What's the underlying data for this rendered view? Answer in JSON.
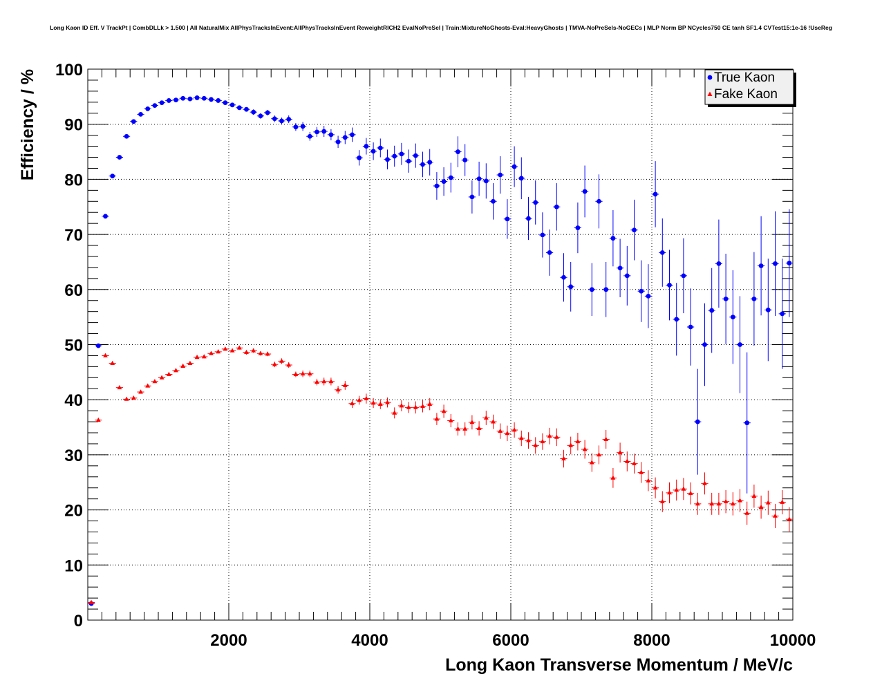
{
  "chart_data": {
    "type": "scatter",
    "title": "Long Kaon ID Eff. V TrackPt | CombDLLk > 1.500 | All NaturalMix AllPhysTracksInEvent:AllPhysTracksInEvent ReweightRICH2 EvalNoPreSel | Train:MixtureNoGhosts-Eval:HeavyGhosts | TMVA-NoPreSels-NoGECs | MLP Norm BP NCycles750 CE tanh SF1.4 CVTest15:1e-16 !UseReg",
    "xlabel": "Long Kaon Transverse Momentum / MeV/c",
    "ylabel": "Efficiency / %",
    "xlim": [
      0,
      10000
    ],
    "ylim": [
      0,
      100
    ],
    "x_ticks": [
      2000,
      4000,
      6000,
      8000,
      10000
    ],
    "x_tick_labels": [
      "2000",
      "4000",
      "6000",
      "8000",
      "10000"
    ],
    "y_ticks": [
      0,
      10,
      20,
      30,
      40,
      50,
      60,
      70,
      80,
      90,
      100
    ],
    "y_tick_labels": [
      "0",
      "10",
      "20",
      "30",
      "40",
      "50",
      "60",
      "70",
      "80",
      "90",
      "100"
    ],
    "grid": true,
    "legend_position": "top-right",
    "series": [
      {
        "name": "True Kaon",
        "marker": "circle",
        "color": "#0000ff",
        "points": [
          [
            50,
            3.0,
            0.3
          ],
          [
            150,
            49.8,
            0.3
          ],
          [
            250,
            73.3,
            0.3
          ],
          [
            350,
            80.6,
            0.3
          ],
          [
            450,
            84.0,
            0.3
          ],
          [
            550,
            87.8,
            0.3
          ],
          [
            650,
            90.5,
            0.3
          ],
          [
            750,
            91.8,
            0.3
          ],
          [
            850,
            92.8,
            0.3
          ],
          [
            950,
            93.4,
            0.3
          ],
          [
            1050,
            93.9,
            0.3
          ],
          [
            1150,
            94.3,
            0.3
          ],
          [
            1250,
            94.4,
            0.3
          ],
          [
            1350,
            94.7,
            0.3
          ],
          [
            1450,
            94.6,
            0.3
          ],
          [
            1550,
            94.8,
            0.3
          ],
          [
            1650,
            94.7,
            0.3
          ],
          [
            1750,
            94.5,
            0.3
          ],
          [
            1850,
            94.3,
            0.3
          ],
          [
            1950,
            93.9,
            0.4
          ],
          [
            2050,
            93.5,
            0.4
          ],
          [
            2150,
            93.0,
            0.4
          ],
          [
            2250,
            92.7,
            0.4
          ],
          [
            2350,
            92.2,
            0.5
          ],
          [
            2450,
            91.5,
            0.5
          ],
          [
            2550,
            92.1,
            0.5
          ],
          [
            2650,
            91.0,
            0.6
          ],
          [
            2750,
            90.6,
            0.6
          ],
          [
            2850,
            90.9,
            0.7
          ],
          [
            2950,
            89.5,
            0.7
          ],
          [
            3050,
            89.6,
            0.8
          ],
          [
            3150,
            87.8,
            0.8
          ],
          [
            3250,
            88.6,
            0.9
          ],
          [
            3350,
            88.7,
            1.0
          ],
          [
            3450,
            88.1,
            1.0
          ],
          [
            3550,
            86.8,
            1.1
          ],
          [
            3650,
            87.6,
            1.2
          ],
          [
            3750,
            88.1,
            1.3
          ],
          [
            3850,
            83.9,
            1.4
          ],
          [
            3950,
            86.0,
            1.5
          ],
          [
            4050,
            85.1,
            1.6
          ],
          [
            4150,
            85.7,
            1.7
          ],
          [
            4250,
            83.6,
            1.8
          ],
          [
            4350,
            84.2,
            1.9
          ],
          [
            4450,
            84.6,
            2.0
          ],
          [
            4550,
            83.3,
            2.1
          ],
          [
            4650,
            84.3,
            2.2
          ],
          [
            4750,
            82.7,
            2.3
          ],
          [
            4850,
            83.1,
            2.4
          ],
          [
            4950,
            78.8,
            2.5
          ],
          [
            5050,
            79.6,
            2.6
          ],
          [
            5150,
            80.3,
            2.7
          ],
          [
            5250,
            85.0,
            2.8
          ],
          [
            5350,
            83.5,
            2.9
          ],
          [
            5450,
            76.8,
            3.0
          ],
          [
            5550,
            80.1,
            3.1
          ],
          [
            5650,
            79.7,
            3.2
          ],
          [
            5750,
            76.0,
            3.3
          ],
          [
            5850,
            80.8,
            3.4
          ],
          [
            5950,
            72.8,
            3.6
          ],
          [
            6050,
            82.3,
            3.7
          ],
          [
            6150,
            80.2,
            3.8
          ],
          [
            6250,
            72.9,
            3.9
          ],
          [
            6350,
            75.8,
            4.0
          ],
          [
            6450,
            69.9,
            4.1
          ],
          [
            6550,
            66.7,
            4.2
          ],
          [
            6650,
            75.0,
            4.3
          ],
          [
            6750,
            62.2,
            4.4
          ],
          [
            6850,
            60.5,
            4.5
          ],
          [
            6950,
            71.2,
            4.6
          ],
          [
            7050,
            77.8,
            4.7
          ],
          [
            7150,
            60.0,
            4.8
          ],
          [
            7250,
            76.0,
            4.9
          ],
          [
            7350,
            60.0,
            5.0
          ],
          [
            7450,
            69.3,
            5.1
          ],
          [
            7550,
            63.9,
            5.3
          ],
          [
            7650,
            62.5,
            5.4
          ],
          [
            7750,
            70.8,
            5.5
          ],
          [
            7850,
            59.7,
            5.6
          ],
          [
            7950,
            58.8,
            5.8
          ],
          [
            8050,
            77.3,
            6.0
          ],
          [
            8150,
            66.7,
            6.2
          ],
          [
            8250,
            60.8,
            6.4
          ],
          [
            8350,
            54.6,
            6.6
          ],
          [
            8450,
            62.5,
            6.8
          ],
          [
            8550,
            53.2,
            7.0
          ],
          [
            8650,
            36.0,
            9.6
          ],
          [
            8750,
            50.0,
            7.5
          ],
          [
            8850,
            56.2,
            7.7
          ],
          [
            8950,
            64.7,
            8.0
          ],
          [
            9050,
            58.3,
            8.2
          ],
          [
            9150,
            55.0,
            8.5
          ],
          [
            9250,
            50.0,
            8.8
          ],
          [
            9350,
            35.8,
            12.8
          ],
          [
            9450,
            58.3,
            8.5
          ],
          [
            9550,
            64.3,
            9.0
          ],
          [
            9650,
            56.3,
            9.3
          ],
          [
            9750,
            64.7,
            9.5
          ],
          [
            9850,
            55.6,
            10.0
          ],
          [
            9950,
            64.8,
            9.8
          ]
        ]
      },
      {
        "name": "Fake Kaon",
        "marker": "triangle",
        "color": "#ff0000",
        "points": [
          [
            50,
            3.2,
            0.2
          ],
          [
            150,
            36.3,
            0.2
          ],
          [
            250,
            48.0,
            0.2
          ],
          [
            350,
            46.6,
            0.2
          ],
          [
            450,
            42.2,
            0.2
          ],
          [
            550,
            40.1,
            0.2
          ],
          [
            650,
            40.3,
            0.2
          ],
          [
            750,
            41.4,
            0.2
          ],
          [
            850,
            42.5,
            0.2
          ],
          [
            950,
            43.3,
            0.2
          ],
          [
            1050,
            44.0,
            0.2
          ],
          [
            1150,
            44.6,
            0.2
          ],
          [
            1250,
            45.3,
            0.2
          ],
          [
            1350,
            46.1,
            0.2
          ],
          [
            1450,
            46.6,
            0.2
          ],
          [
            1550,
            47.7,
            0.2
          ],
          [
            1650,
            47.8,
            0.3
          ],
          [
            1750,
            48.4,
            0.3
          ],
          [
            1850,
            48.7,
            0.3
          ],
          [
            1950,
            49.2,
            0.3
          ],
          [
            2050,
            48.9,
            0.3
          ],
          [
            2150,
            49.4,
            0.3
          ],
          [
            2250,
            48.6,
            0.4
          ],
          [
            2350,
            48.9,
            0.4
          ],
          [
            2450,
            48.4,
            0.4
          ],
          [
            2550,
            48.3,
            0.4
          ],
          [
            2650,
            46.4,
            0.5
          ],
          [
            2750,
            47.0,
            0.5
          ],
          [
            2850,
            46.3,
            0.5
          ],
          [
            2950,
            44.6,
            0.5
          ],
          [
            3050,
            44.7,
            0.6
          ],
          [
            3150,
            44.7,
            0.6
          ],
          [
            3250,
            43.2,
            0.6
          ],
          [
            3350,
            43.3,
            0.7
          ],
          [
            3450,
            43.3,
            0.7
          ],
          [
            3550,
            41.8,
            0.7
          ],
          [
            3650,
            42.6,
            0.8
          ],
          [
            3750,
            39.3,
            0.8
          ],
          [
            3850,
            39.9,
            0.8
          ],
          [
            3950,
            40.2,
            0.9
          ],
          [
            4050,
            39.4,
            0.9
          ],
          [
            4150,
            39.2,
            0.9
          ],
          [
            4250,
            39.5,
            0.9
          ],
          [
            4350,
            37.6,
            1.0
          ],
          [
            4450,
            38.9,
            1.0
          ],
          [
            4550,
            38.6,
            1.0
          ],
          [
            4650,
            38.6,
            1.1
          ],
          [
            4750,
            38.8,
            1.1
          ],
          [
            4850,
            39.2,
            1.1
          ],
          [
            4950,
            36.5,
            1.1
          ],
          [
            5050,
            37.9,
            1.2
          ],
          [
            5150,
            36.2,
            1.2
          ],
          [
            5250,
            34.7,
            1.2
          ],
          [
            5350,
            34.7,
            1.2
          ],
          [
            5450,
            35.9,
            1.3
          ],
          [
            5550,
            34.8,
            1.3
          ],
          [
            5650,
            36.7,
            1.3
          ],
          [
            5750,
            36.0,
            1.3
          ],
          [
            5850,
            34.3,
            1.4
          ],
          [
            5950,
            33.9,
            1.4
          ],
          [
            6050,
            34.5,
            1.4
          ],
          [
            6150,
            33.0,
            1.4
          ],
          [
            6250,
            32.6,
            1.5
          ],
          [
            6350,
            31.7,
            1.5
          ],
          [
            6450,
            32.4,
            1.5
          ],
          [
            6550,
            33.4,
            1.5
          ],
          [
            6650,
            33.2,
            1.6
          ],
          [
            6750,
            29.3,
            1.6
          ],
          [
            6850,
            31.7,
            1.6
          ],
          [
            6950,
            32.4,
            1.6
          ],
          [
            7050,
            31.0,
            1.7
          ],
          [
            7150,
            28.6,
            1.7
          ],
          [
            7250,
            30.0,
            1.7
          ],
          [
            7350,
            32.8,
            1.7
          ],
          [
            7450,
            25.8,
            1.8
          ],
          [
            7550,
            30.4,
            1.8
          ],
          [
            7650,
            28.8,
            1.8
          ],
          [
            7750,
            28.4,
            1.8
          ],
          [
            7850,
            26.8,
            1.9
          ],
          [
            7950,
            25.3,
            1.9
          ],
          [
            8050,
            24.0,
            1.9
          ],
          [
            8150,
            21.5,
            1.9
          ],
          [
            8250,
            23.1,
            1.9
          ],
          [
            8350,
            23.6,
            1.9
          ],
          [
            8450,
            23.8,
            2.0
          ],
          [
            8550,
            23.0,
            2.0
          ],
          [
            8650,
            21.1,
            2.0
          ],
          [
            8750,
            24.8,
            2.0
          ],
          [
            8850,
            21.1,
            2.0
          ],
          [
            8950,
            21.1,
            2.0
          ],
          [
            9050,
            21.5,
            2.1
          ],
          [
            9150,
            21.1,
            2.1
          ],
          [
            9250,
            21.7,
            2.1
          ],
          [
            9350,
            19.4,
            2.1
          ],
          [
            9450,
            22.5,
            2.1
          ],
          [
            9550,
            20.5,
            2.1
          ],
          [
            9650,
            21.3,
            2.2
          ],
          [
            9750,
            18.9,
            2.2
          ],
          [
            9850,
            21.4,
            2.2
          ],
          [
            9950,
            18.3,
            2.2
          ]
        ]
      }
    ]
  }
}
